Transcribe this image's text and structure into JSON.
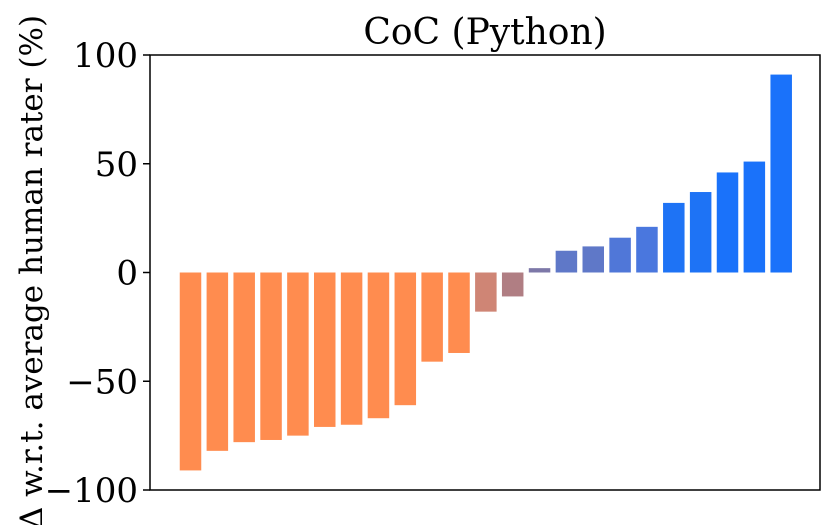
{
  "chart_data": {
    "type": "bar",
    "title": "CoC (Python)",
    "xlabel": "",
    "ylabel": "Δ w.r.t. average human rater (%)",
    "ylim": [
      -100,
      100
    ],
    "yticks": [
      100,
      50,
      0,
      -50,
      -100
    ],
    "ytick_labels": [
      "100",
      "50",
      "0",
      "−50",
      "−100"
    ],
    "xticks": [],
    "grid": false,
    "legend": "none",
    "values": [
      -91,
      -82,
      -78,
      -77,
      -75,
      -71,
      -70,
      -67,
      -61,
      -41,
      -37,
      -18,
      -11,
      2,
      10,
      12,
      16,
      21,
      32,
      37,
      46,
      51,
      91
    ],
    "colors": [
      "#FF8C4F",
      "#FF8C4F",
      "#FF8C4F",
      "#FF8C4F",
      "#FF8C4F",
      "#FF8C4F",
      "#FF8C4F",
      "#FF8C4F",
      "#FF8C4F",
      "#FF8C4F",
      "#FF8C4F",
      "#CF8575",
      "#B07E83",
      "#7D78A8",
      "#5F78C8",
      "#5F78C8",
      "#5077D8",
      "#4A77DE",
      "#1E73F5",
      "#1E73F5",
      "#1A72FA",
      "#1A72FA",
      "#1A72FA"
    ]
  }
}
